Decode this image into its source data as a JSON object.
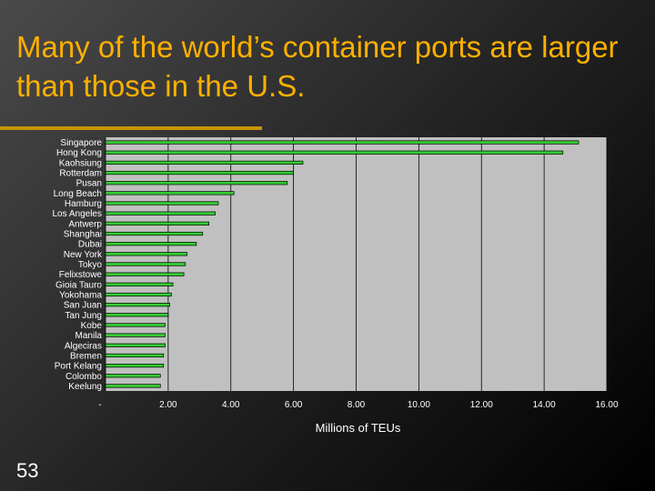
{
  "slide": {
    "title": "Many of the world’s container ports are larger than those in the U.S.",
    "number": "53"
  },
  "colors": {
    "title": "#ffb000",
    "accent_rule": "#c89400",
    "plot_bg": "#c0c0c0",
    "bar_fill": "#33cc33",
    "bar_stroke": "#000000",
    "text": "#ffffff"
  },
  "chart_data": {
    "type": "bar",
    "orientation": "horizontal",
    "xlabel": "Millions of TEUs",
    "xlim": [
      0,
      16
    ],
    "xticks": [
      0,
      2,
      4,
      6,
      8,
      10,
      12,
      14,
      16
    ],
    "xtick_labels": [
      "-",
      "2.00",
      "4.00",
      "6.00",
      "8.00",
      "10.00",
      "12.00",
      "14.00",
      "16.00"
    ],
    "grid": true,
    "categories": [
      "Singapore",
      "Hong Kong",
      "Kaohsiung",
      "Rotterdam",
      "Pusan",
      "Long Beach",
      "Hamburg",
      "Los Angeles",
      "Antwerp",
      "Shanghai",
      "Dubai",
      "New York",
      "Tokyo",
      "Felixstowe",
      "Gioia Tauro",
      "Yokohama",
      "San Juan",
      "Tan Jung",
      "Kobe",
      "Manila",
      "Algeciras",
      "Bremen",
      "Port Kelang",
      "Colombo",
      "Keelung"
    ],
    "values": [
      15.1,
      14.6,
      6.3,
      6.0,
      5.8,
      4.1,
      3.6,
      3.5,
      3.3,
      3.1,
      2.9,
      2.6,
      2.55,
      2.5,
      2.15,
      2.1,
      2.05,
      2.0,
      1.9,
      1.9,
      1.9,
      1.85,
      1.85,
      1.75,
      1.75
    ]
  }
}
